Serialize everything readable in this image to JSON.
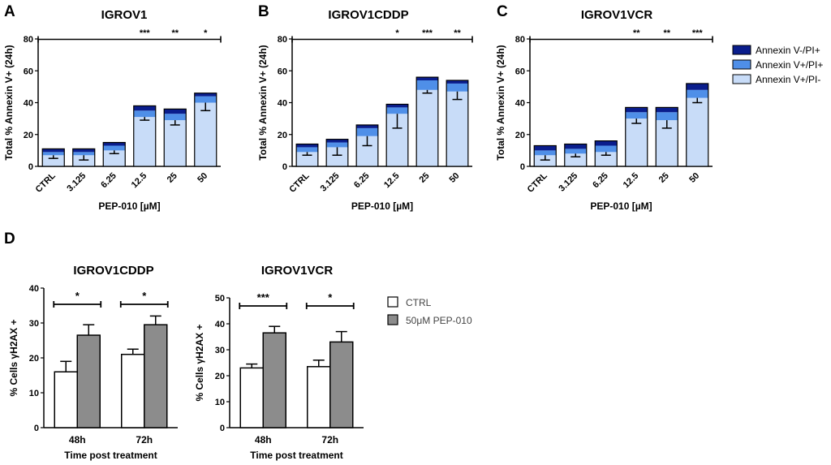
{
  "colors": {
    "annexin_v_neg_pi_pos": "#0a1d8c",
    "annexin_v_pos_pi_pos": "#4f8fe8",
    "annexin_v_pos_pi_neg": "#c8dcf8",
    "ctrl_bar": "#ffffff",
    "pep_bar": "#8c8c8c"
  },
  "chart_data": [
    {
      "panel": "A",
      "title": "IGROV1",
      "type": "bar",
      "stacked": true,
      "xlabel": "PEP-010 [µM]",
      "ylabel": "Total % Annexin  V+ (24h)",
      "ylim": [
        0,
        80
      ],
      "yticks": [
        "0",
        "20",
        "40",
        "60",
        "80"
      ],
      "categories": [
        "CTRL",
        "3.125",
        "6.25",
        "12.5",
        "25",
        "50"
      ],
      "series": [
        {
          "name": "Annexin V+/PI-",
          "values": [
            7,
            7,
            10,
            31,
            29,
            40
          ]
        },
        {
          "name": "Annexin V+/PI+",
          "values": [
            2,
            2,
            3,
            4,
            4,
            4
          ]
        },
        {
          "name": "Annexin V-/PI+",
          "values": [
            2,
            2,
            2,
            3,
            3,
            2
          ]
        }
      ],
      "error": [
        2,
        3,
        2,
        2,
        3,
        5
      ],
      "significance": [
        "",
        "",
        "",
        "***",
        "**",
        "*"
      ]
    },
    {
      "panel": "B",
      "title": "IGROV1CDDP",
      "type": "bar",
      "stacked": true,
      "xlabel": "PEP-010 [µM]",
      "ylabel": "Total % Annexin  V+ (24h)",
      "ylim": [
        0,
        80
      ],
      "yticks": [
        "0",
        "20",
        "40",
        "60",
        "80"
      ],
      "categories": [
        "CTRL",
        "3.125",
        "6.25",
        "12.5",
        "25",
        "50"
      ],
      "series": [
        {
          "name": "Annexin V+/PI-",
          "values": [
            9,
            12,
            19,
            33,
            48,
            47
          ]
        },
        {
          "name": "Annexin V+/PI+",
          "values": [
            3,
            3,
            5,
            4,
            6,
            5
          ]
        },
        {
          "name": "Annexin V-/PI+",
          "values": [
            2,
            2,
            2,
            2,
            2,
            2
          ]
        }
      ],
      "error": [
        2,
        5,
        6,
        9,
        2,
        5
      ],
      "significance": [
        "",
        "",
        "",
        "*",
        "***",
        "**"
      ]
    },
    {
      "panel": "C",
      "title": "IGROV1VCR",
      "type": "bar",
      "stacked": true,
      "xlabel": "PEP-010 [µM]",
      "ylabel": "Total % Annexin  V+ (24h)",
      "ylim": [
        0,
        80
      ],
      "yticks": [
        "0",
        "20",
        "40",
        "60",
        "80"
      ],
      "categories": [
        "CTRL",
        "3.125",
        "6.25",
        "12.5",
        "25",
        "50"
      ],
      "series": [
        {
          "name": "Annexin V+/PI-",
          "values": [
            7,
            8,
            9,
            30,
            29,
            43
          ]
        },
        {
          "name": "Annexin V+/PI+",
          "values": [
            3,
            3,
            4,
            4,
            5,
            5
          ]
        },
        {
          "name": "Annexin V-/PI+",
          "values": [
            3,
            3,
            3,
            3,
            3,
            4
          ]
        }
      ],
      "error": [
        3,
        2,
        2,
        3,
        5,
        3
      ],
      "significance": [
        "",
        "",
        "",
        "**",
        "**",
        "***"
      ]
    },
    {
      "panel": "D",
      "title": "IGROV1CDDP",
      "type": "bar",
      "xlabel": "Time post treatment",
      "ylabel": "% Cells γH2AX +",
      "ylim": [
        0,
        40
      ],
      "yticks": [
        "0",
        "10",
        "20",
        "30",
        "40"
      ],
      "categories": [
        "48h",
        "72h"
      ],
      "series": [
        {
          "name": "CTRL",
          "values": [
            16,
            21
          ],
          "error": [
            3,
            1.5
          ]
        },
        {
          "name": "50μM PEP-010",
          "values": [
            26.5,
            29.5
          ],
          "error": [
            3,
            2.5
          ]
        }
      ],
      "significance": [
        "*",
        "*"
      ]
    },
    {
      "title": "IGROV1VCR",
      "type": "bar",
      "xlabel": "Time post treatment",
      "ylabel": "% Cells γH2AX +",
      "ylim": [
        0,
        50
      ],
      "yticks": [
        "0",
        "10",
        "20",
        "30",
        "40",
        "50"
      ],
      "categories": [
        "48h",
        "72h"
      ],
      "series": [
        {
          "name": "CTRL",
          "values": [
            23,
            23.5
          ],
          "error": [
            1.5,
            2.5
          ]
        },
        {
          "name": "50μM PEP-010",
          "values": [
            36.5,
            33
          ],
          "error": [
            2.5,
            4
          ]
        }
      ],
      "significance": [
        "***",
        "*"
      ]
    }
  ],
  "legend_abc": [
    "Annexin V-/PI+",
    "Annexin V+/PI+",
    "Annexin V+/PI-"
  ],
  "legend_d": [
    "CTRL",
    "50μM PEP-010"
  ]
}
